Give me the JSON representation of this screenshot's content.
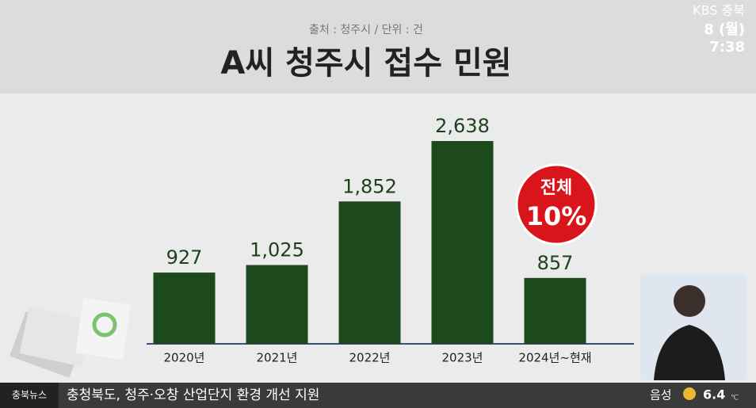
{
  "chart_data": {
    "type": "bar",
    "source": "출처 : 청주시 / 단위 : 건",
    "title": "A씨 청주시 접수 민원",
    "categories": [
      "2020년",
      "2021년",
      "2022년",
      "2023년",
      "2024년~현재"
    ],
    "values": [
      927,
      1025,
      1852,
      2638,
      857
    ],
    "value_labels": [
      "927",
      "1,025",
      "1,852",
      "2,638",
      "857"
    ],
    "color": "#1d4a1d",
    "badge": {
      "line1": "전체",
      "line2": "10%"
    }
  },
  "broadcast": {
    "channel": "KBS 충북",
    "date": "8 (월)",
    "time": "7:38"
  },
  "ticker": {
    "label": "충북뉴스",
    "headline": "충청북도, 청주·오창 산업단지 환경 개선 지원"
  },
  "weather": {
    "location": "음성",
    "temp": "6.4",
    "unit": "℃"
  }
}
